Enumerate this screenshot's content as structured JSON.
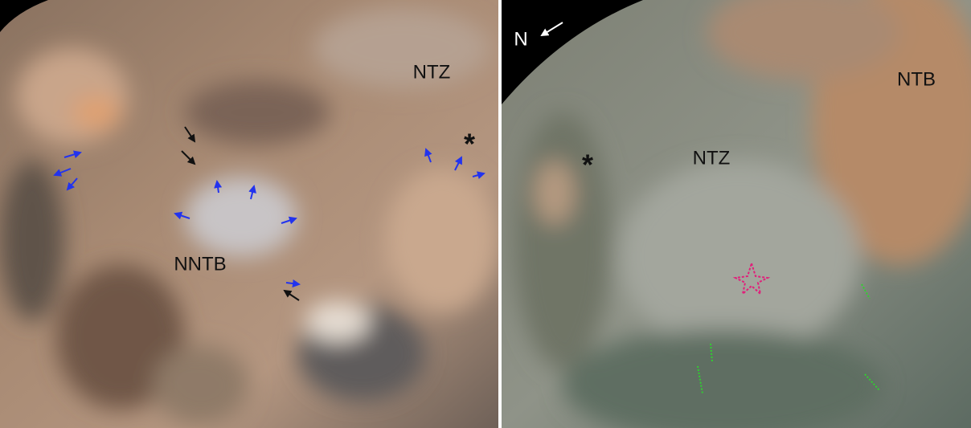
{
  "left_panel": {
    "labels": [
      "NTZ",
      "*",
      "NNTB"
    ]
  },
  "right_panel": {
    "north": "N",
    "labels": [
      "NTB",
      "NTZ",
      "*"
    ]
  }
}
